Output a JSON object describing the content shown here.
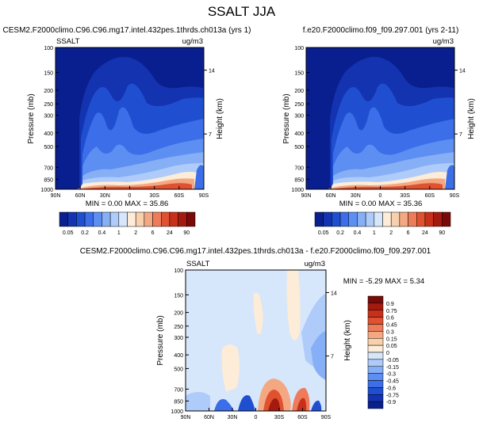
{
  "figure": {
    "title": "SSALT JJA"
  },
  "chart_data": [
    {
      "type": "heatmap",
      "title": "CESM2.F2000climo.C96.C96.mg17.intel.432pes.1thrds.ch013a (yrs 1)",
      "variable": "SSALT",
      "units": "ug/m3",
      "xlabel": "",
      "ylabel": "Pressure (mb)",
      "y2label": "Height (km)",
      "x_ticks": [
        "90N",
        "60N",
        "30N",
        "0",
        "30S",
        "60S",
        "90S"
      ],
      "y_ticks": [
        "100",
        "150",
        "200",
        "250",
        "300",
        "400",
        "500",
        "700",
        "850",
        "1000"
      ],
      "y2_ticks": [
        "14",
        "7"
      ],
      "ylim": [
        1000,
        100
      ],
      "y_scale": "log",
      "stats": "MIN =  0.00   MAX = 35.86",
      "colorbar": {
        "orientation": "horizontal",
        "labels": [
          "0.05",
          "0.2",
          "0.4",
          "1",
          "2",
          "6",
          "24",
          "90"
        ],
        "colors": [
          "#0a1f8f",
          "#1333b0",
          "#1f4fd0",
          "#3b6ee8",
          "#5d8ff2",
          "#86aff6",
          "#aecbf9",
          "#d6e6fb",
          "#fcecd8",
          "#f9d0ad",
          "#f4a882",
          "#ee7c5a",
          "#e0512f",
          "#c8301a",
          "#a51a0f",
          "#7a0a08"
        ]
      }
    },
    {
      "type": "heatmap",
      "title": "f.e20.F2000climo.f09_f09.297.001 (yrs 2-11)",
      "variable": "",
      "units": "ug/m3",
      "xlabel": "",
      "ylabel": "Pressure (mb)",
      "y2label": "Height (km)",
      "x_ticks": [
        "90N",
        "60N",
        "30N",
        "0",
        "30S",
        "60S",
        "90S"
      ],
      "y_ticks": [
        "100",
        "150",
        "200",
        "250",
        "300",
        "400",
        "500",
        "700",
        "850",
        "1000"
      ],
      "y2_ticks": [
        "14",
        "7"
      ],
      "ylim": [
        1000,
        100
      ],
      "y_scale": "log",
      "stats": "MIN =  0.00   MAX = 35.36",
      "colorbar": {
        "orientation": "horizontal",
        "labels": [
          "0.05",
          "0.2",
          "0.4",
          "1",
          "2",
          "6",
          "24",
          "90"
        ],
        "colors": [
          "#0a1f8f",
          "#1333b0",
          "#1f4fd0",
          "#3b6ee8",
          "#5d8ff2",
          "#86aff6",
          "#aecbf9",
          "#d6e6fb",
          "#fcecd8",
          "#f9d0ad",
          "#f4a882",
          "#ee7c5a",
          "#e0512f",
          "#c8301a",
          "#a51a0f",
          "#7a0a08"
        ]
      }
    },
    {
      "type": "heatmap",
      "title": "CESM2.F2000climo.C96.C96.mg17.intel.432pes.1thrds.ch013a - f.e20.F2000climo.f09_f09.297.001",
      "variable": "SSALT",
      "units": "ug/m3",
      "xlabel": "",
      "ylabel": "Pressure (mb)",
      "y2label": "Height (km)",
      "x_ticks": [
        "90N",
        "60N",
        "30N",
        "0",
        "30S",
        "60S",
        "90S"
      ],
      "y_ticks": [
        "100",
        "150",
        "200",
        "250",
        "300",
        "400",
        "500",
        "700",
        "850",
        "1000"
      ],
      "y2_ticks": [
        "14",
        "7"
      ],
      "ylim": [
        1000,
        100
      ],
      "y_scale": "log",
      "stats": "MIN = -5.29   MAX =  5.34",
      "colorbar": {
        "orientation": "vertical",
        "labels": [
          "0.9",
          "0.75",
          "0.6",
          "0.45",
          "0.3",
          "0.15",
          "0.05",
          "0",
          "-0.05",
          "-0.15",
          "-0.3",
          "-0.45",
          "-0.6",
          "-0.75",
          "-0.9"
        ],
        "colors": [
          "#7a0a08",
          "#a51a0f",
          "#c8301a",
          "#e0512f",
          "#ee7c5a",
          "#f4a882",
          "#f9d0ad",
          "#fcecd8",
          "#d6e6fb",
          "#aecbf9",
          "#86aff6",
          "#5d8ff2",
          "#3b6ee8",
          "#1f4fd0",
          "#1333b0",
          "#0a1f8f"
        ]
      }
    }
  ]
}
